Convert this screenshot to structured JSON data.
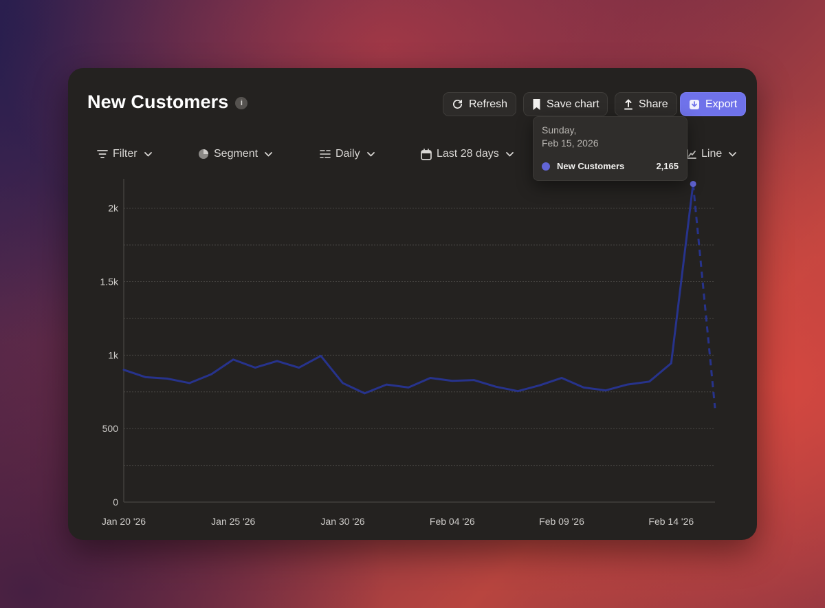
{
  "header": {
    "title": "New Customers",
    "info_icon": "info-icon",
    "buttons": {
      "refresh": "Refresh",
      "save_chart": "Save chart",
      "share": "Share",
      "export": "Export"
    }
  },
  "toolbar": {
    "filter": "Filter",
    "segment": "Segment",
    "interval": "Daily",
    "date_range": "Last 28 days",
    "chart_type": "Line"
  },
  "tooltip": {
    "line1": "Sunday,",
    "line2": "Feb 15, 2026",
    "series": "New Customers",
    "value": "2,165"
  },
  "colors": {
    "line": "#27338c",
    "accent": "#6f72ea",
    "highlight_dot": "#6265d6"
  },
  "chart_data": {
    "type": "line",
    "title": "",
    "xlabel": "",
    "ylabel": "",
    "x": [
      "2026-01-20",
      "2026-01-21",
      "2026-01-22",
      "2026-01-23",
      "2026-01-24",
      "2026-01-25",
      "2026-01-26",
      "2026-01-27",
      "2026-01-28",
      "2026-01-29",
      "2026-01-30",
      "2026-01-31",
      "2026-02-01",
      "2026-02-02",
      "2026-02-03",
      "2026-02-04",
      "2026-02-05",
      "2026-02-06",
      "2026-02-07",
      "2026-02-08",
      "2026-02-09",
      "2026-02-10",
      "2026-02-11",
      "2026-02-12",
      "2026-02-13",
      "2026-02-14",
      "2026-02-15",
      "2026-02-16"
    ],
    "x_tick_labels": [
      "Jan 20 '26",
      "Jan 25 '26",
      "Jan 30 '26",
      "Feb 04 '26",
      "Feb 09 '26",
      "Feb 14 '26"
    ],
    "y_ticks": [
      0,
      500,
      1000,
      1500,
      2000
    ],
    "y_tick_labels": [
      "0",
      "500",
      "1k",
      "1.5k",
      "2k"
    ],
    "ylim": [
      0,
      2200
    ],
    "grid": true,
    "series": [
      {
        "name": "New Customers",
        "values": [
          900,
          850,
          840,
          810,
          870,
          970,
          915,
          960,
          915,
          995,
          810,
          740,
          800,
          780,
          845,
          825,
          830,
          785,
          755,
          795,
          845,
          780,
          760,
          800,
          820,
          945,
          2165,
          640
        ],
        "incomplete_from_index": 26
      }
    ],
    "highlight": {
      "x": "2026-02-15",
      "value": 2165
    }
  }
}
